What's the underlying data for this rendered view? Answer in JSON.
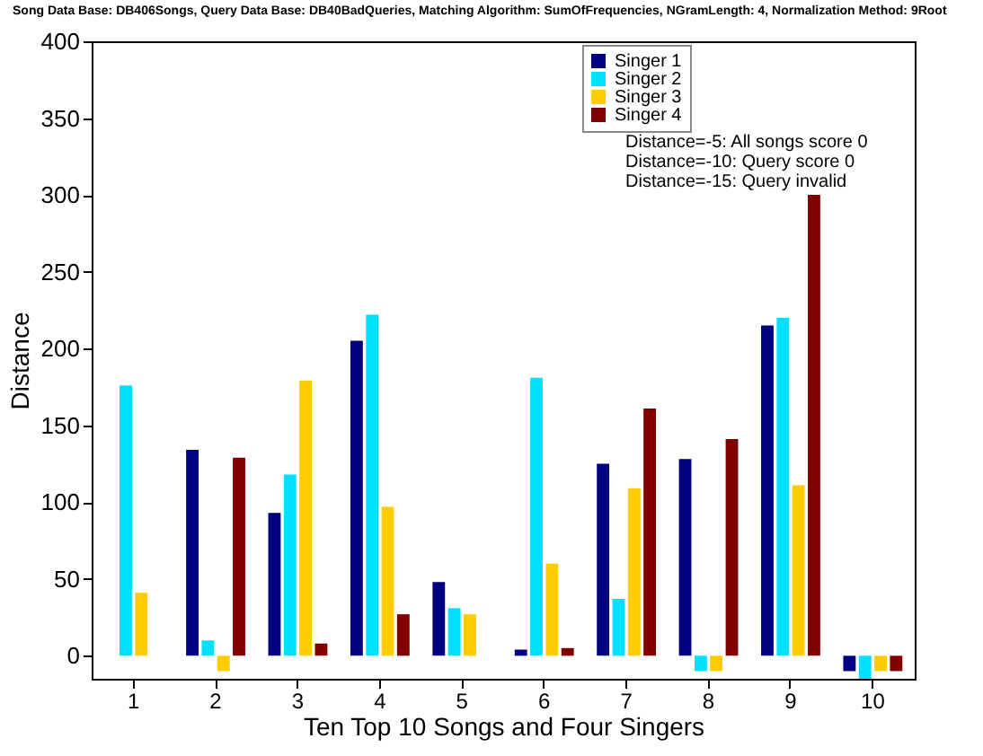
{
  "chart_data": {
    "type": "bar",
    "title": "Song Data Base: DB406Songs, Query Data Base: DB40BadQueries, Matching Algorithm: SumOfFrequencies, NGramLength: 4, Normalization Method: 9Root",
    "xlabel": "Ten Top 10 Songs and Four Singers",
    "ylabel": "Distance",
    "categories": [
      "1",
      "2",
      "3",
      "4",
      "5",
      "6",
      "7",
      "8",
      "9",
      "10"
    ],
    "series": [
      {
        "name": "Singer 1",
        "color": "#000080",
        "values": [
          0,
          134,
          93,
          205,
          48,
          4,
          125,
          128,
          215,
          -10
        ]
      },
      {
        "name": "Singer 2",
        "color": "#00e0ff",
        "values": [
          176,
          10,
          118,
          222,
          31,
          181,
          37,
          -10,
          220,
          -15
        ]
      },
      {
        "name": "Singer 3",
        "color": "#ffcc00",
        "values": [
          41,
          -10,
          179,
          97,
          27,
          60,
          109,
          -10,
          111,
          -10
        ]
      },
      {
        "name": "Singer 4",
        "color": "#800000",
        "values": [
          0,
          129,
          8,
          27,
          0,
          5,
          161,
          141,
          300,
          -10
        ]
      }
    ],
    "annotations": [
      "Distance=-5: All songs score 0",
      "Distance=-10: Query score 0",
      "Distance=-15: Query invalid"
    ],
    "ylim": [
      -15,
      400
    ],
    "yticks": [
      0,
      50,
      100,
      150,
      200,
      250,
      300,
      350,
      400
    ],
    "grid": false,
    "legend": "top right"
  }
}
